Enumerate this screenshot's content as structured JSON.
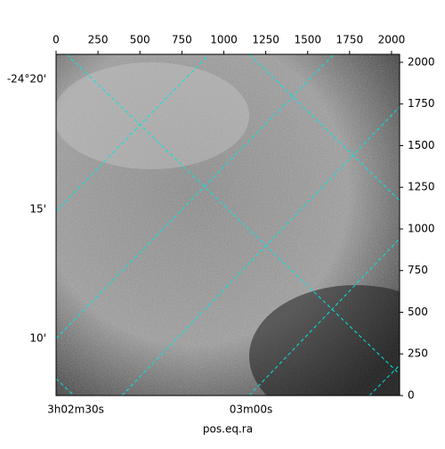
{
  "chart_data": {
    "type": "image",
    "xlabel": "pos.eq.ra",
    "xlim": [
      0,
      2048
    ],
    "xticks": [
      0,
      250,
      500,
      750,
      1000,
      1250,
      1500,
      1750,
      2000
    ],
    "ylim": [
      0,
      2048
    ],
    "yticks": [
      0,
      250,
      500,
      750,
      1000,
      1250,
      1500,
      1750,
      2000
    ],
    "ra_tick_labels": [
      "3h02m30s",
      "03m00s"
    ],
    "dec_tick_labels": [
      "-24°20'",
      "15'",
      "10'"
    ],
    "grid_color": "#00e5e5"
  }
}
